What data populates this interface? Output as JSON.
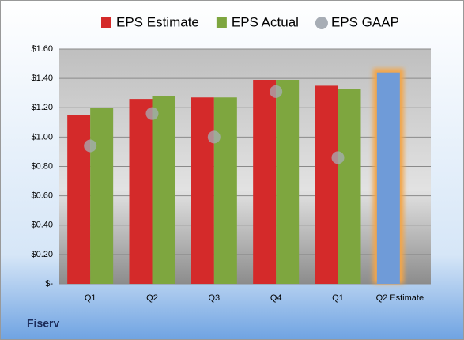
{
  "chart_data": {
    "type": "bar",
    "label": "Fiserv",
    "categories": [
      "Q1",
      "Q2",
      "Q3",
      "Q4",
      "Q1",
      "Q2 Estimate"
    ],
    "series": [
      {
        "name": "EPS Estimate",
        "color": "#d42a2a",
        "values": [
          1.15,
          1.26,
          1.27,
          1.39,
          1.35,
          1.44
        ],
        "highlight_index": 5,
        "highlight_color": "#6f9bd8",
        "highlight_glow": "#f3a64a"
      },
      {
        "name": "EPS Actual",
        "color": "#7ea63f",
        "values": [
          1.2,
          1.28,
          1.27,
          1.39,
          1.33,
          null
        ]
      },
      {
        "name": "EPS GAAP",
        "color": "#a7adb5",
        "marker": "circle",
        "values": [
          0.94,
          1.16,
          1.0,
          1.31,
          0.86,
          null
        ]
      }
    ],
    "ylim": [
      0,
      1.6
    ],
    "yticks": [
      {
        "value": 0,
        "label": "$-"
      },
      {
        "value": 0.2,
        "label": "$0.20"
      },
      {
        "value": 0.4,
        "label": "$0.40"
      },
      {
        "value": 0.6,
        "label": "$0.60"
      },
      {
        "value": 0.8,
        "label": "$0.80"
      },
      {
        "value": 1.0,
        "label": "$1.00"
      },
      {
        "value": 1.2,
        "label": "$1.20"
      },
      {
        "value": 1.4,
        "label": "$1.40"
      },
      {
        "value": 1.6,
        "label": "$1.60"
      }
    ],
    "grid": true
  }
}
